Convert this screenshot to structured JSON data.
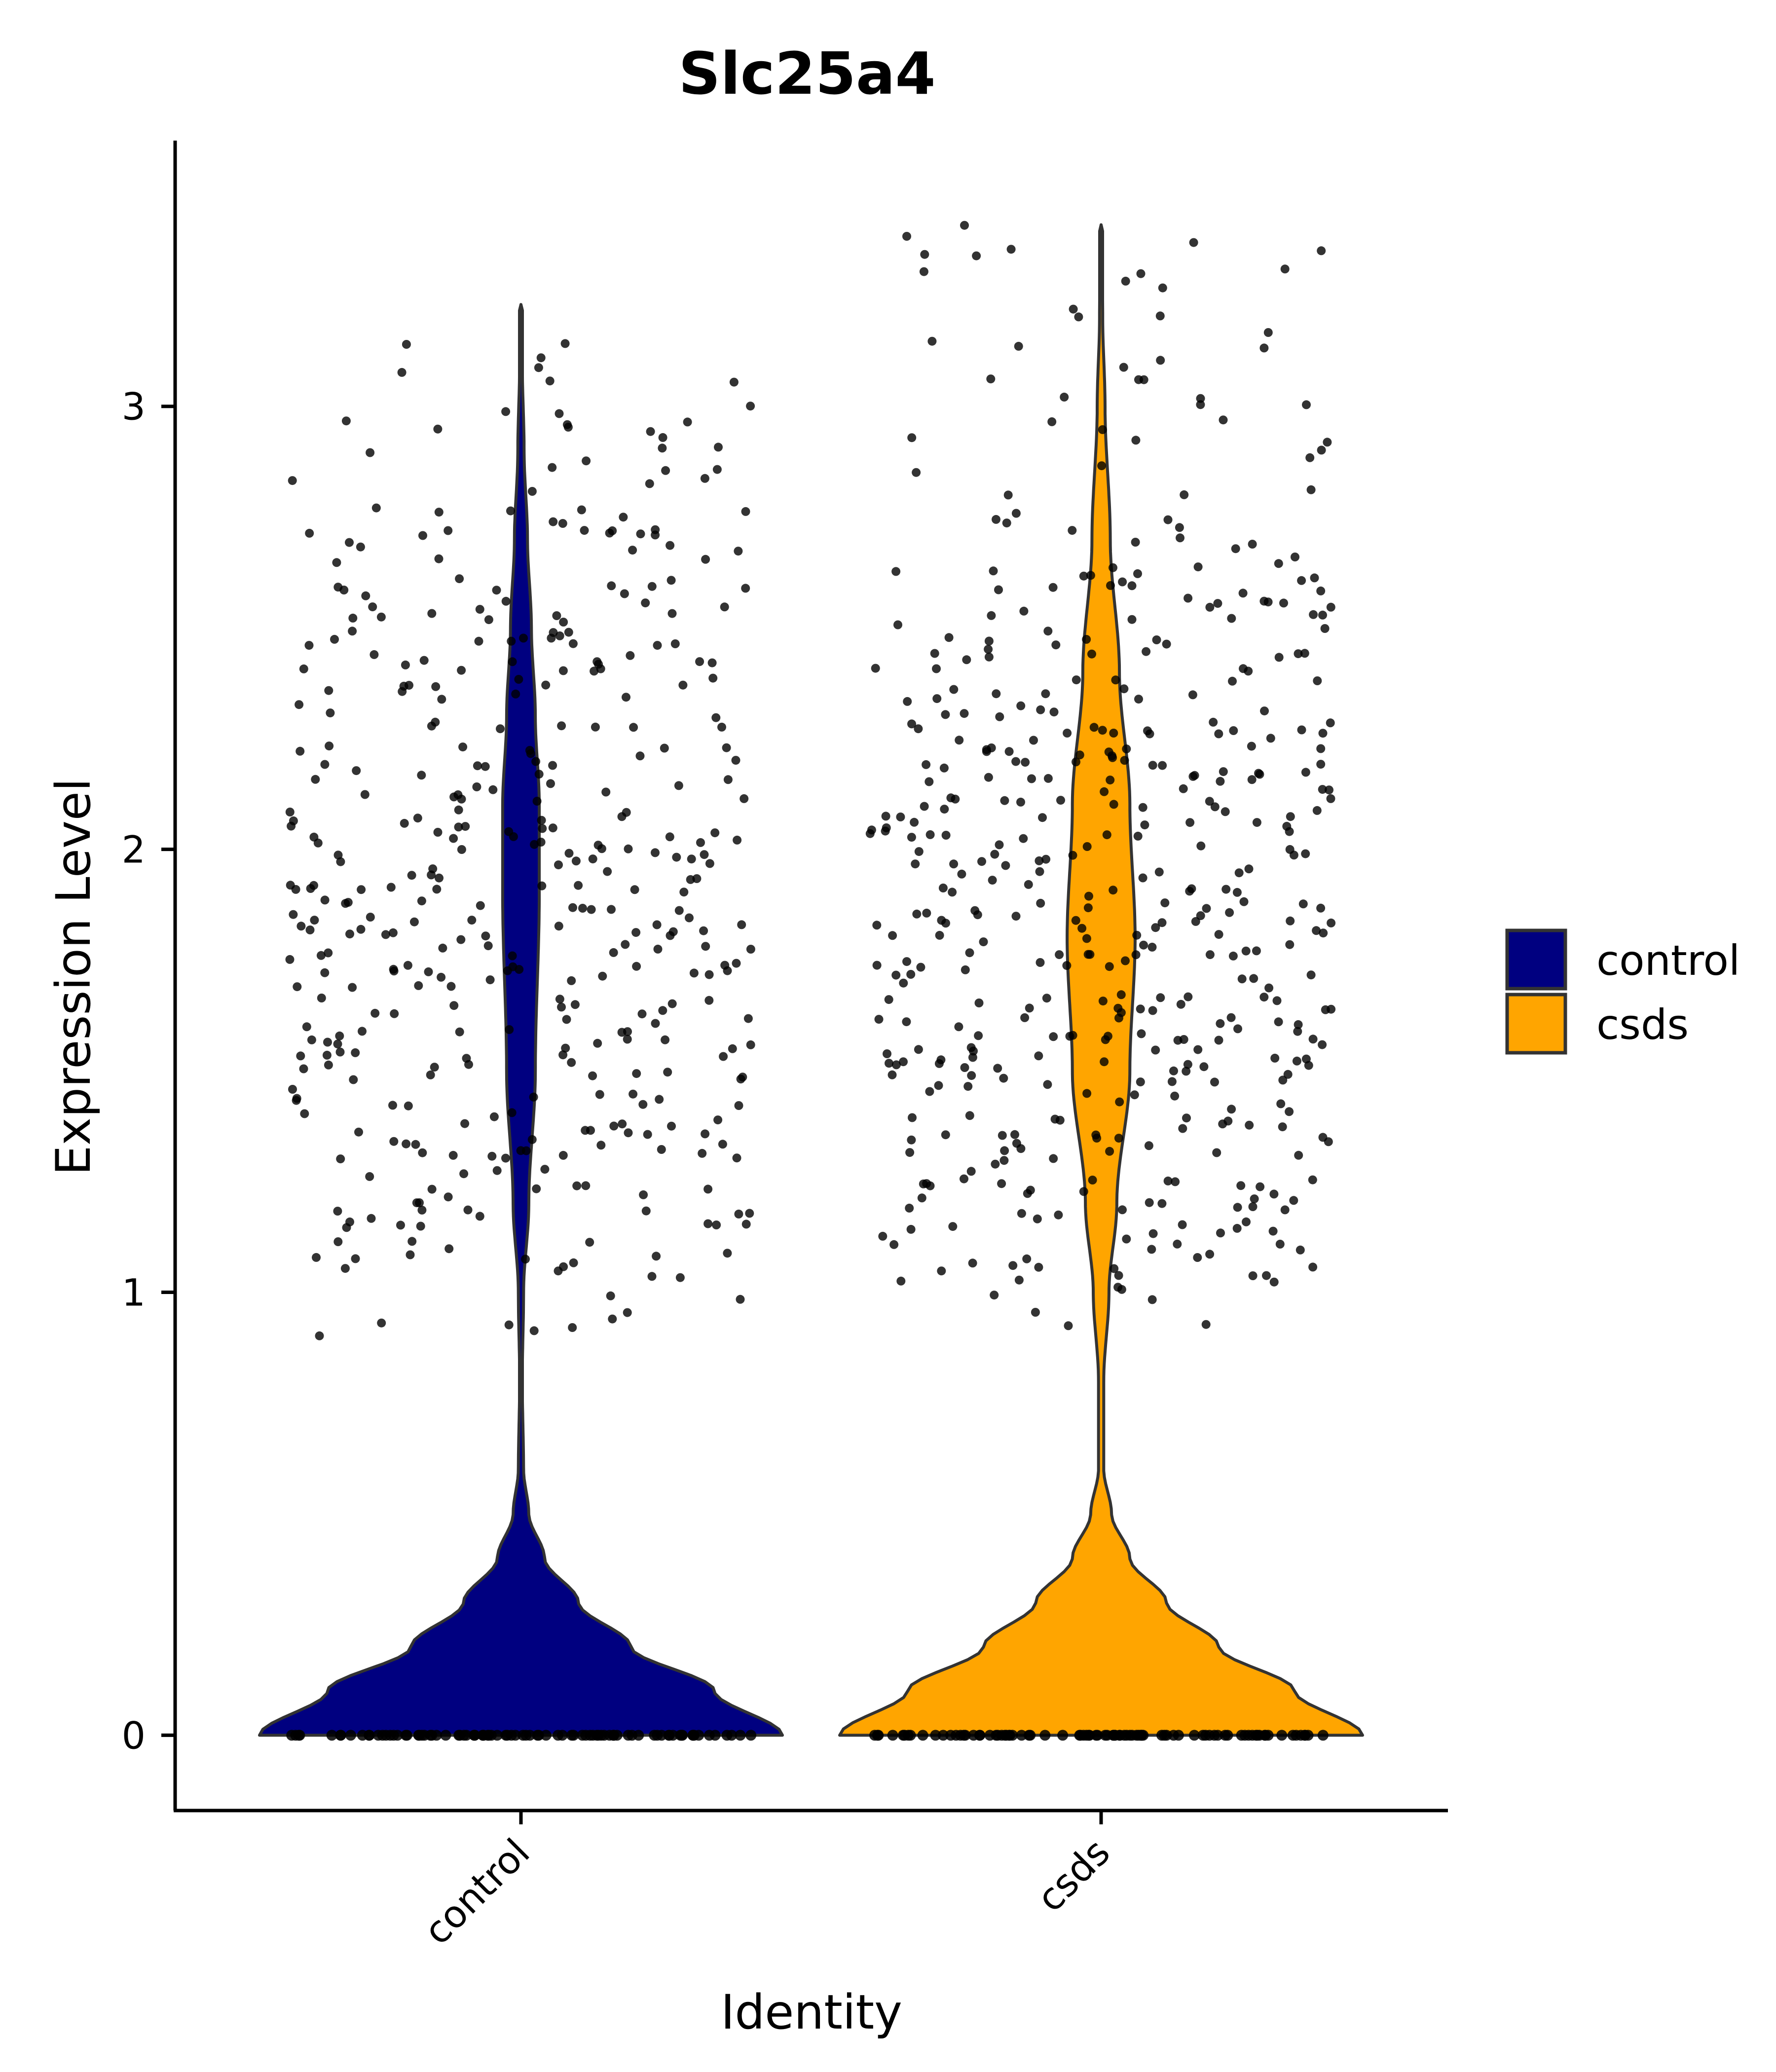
{
  "chart_data": {
    "type": "violin",
    "title": "Slc25a4",
    "xlabel": "Identity",
    "ylabel": "Expression Level",
    "categories": [
      "control",
      "csds"
    ],
    "ylim": [
      -0.17,
      3.6
    ],
    "yticks": [
      0,
      1,
      2,
      3
    ],
    "ytick_labels": [
      "0",
      "1",
      "2",
      "3"
    ],
    "grid": false,
    "legend": {
      "position": "right",
      "entries": [
        {
          "label": "control",
          "color": "#000080"
        },
        {
          "label": "csds",
          "color": "#FFA500"
        }
      ]
    },
    "series": [
      {
        "name": "control",
        "color": "#000080",
        "max_value": 3.23,
        "zero_fraction": 0.78,
        "nonzero_mode": 1.9,
        "approx_nonzero_range": [
          0.7,
          3.23
        ],
        "density_profile": [
          {
            "y": 0.0,
            "density": 1.0
          },
          {
            "y": 0.1,
            "density": 0.74
          },
          {
            "y": 0.2,
            "density": 0.42
          },
          {
            "y": 0.3,
            "density": 0.22
          },
          {
            "y": 0.4,
            "density": 0.09
          },
          {
            "y": 0.5,
            "density": 0.03
          },
          {
            "y": 0.6,
            "density": 0.01
          },
          {
            "y": 0.8,
            "density": 0.005
          },
          {
            "y": 1.0,
            "density": 0.01
          },
          {
            "y": 1.2,
            "density": 0.03
          },
          {
            "y": 1.5,
            "density": 0.055
          },
          {
            "y": 1.9,
            "density": 0.07
          },
          {
            "y": 2.1,
            "density": 0.07
          },
          {
            "y": 2.3,
            "density": 0.055
          },
          {
            "y": 2.5,
            "density": 0.04
          },
          {
            "y": 2.7,
            "density": 0.025
          },
          {
            "y": 2.9,
            "density": 0.012
          },
          {
            "y": 3.1,
            "density": 0.005
          },
          {
            "y": 3.23,
            "density": 0.002
          }
        ]
      },
      {
        "name": "csds",
        "color": "#FFA500",
        "max_value": 3.41,
        "zero_fraction": 0.72,
        "nonzero_mode": 1.8,
        "approx_nonzero_range": [
          0.72,
          3.41
        ],
        "density_profile": [
          {
            "y": 0.0,
            "density": 1.0
          },
          {
            "y": 0.1,
            "density": 0.74
          },
          {
            "y": 0.2,
            "density": 0.45
          },
          {
            "y": 0.3,
            "density": 0.25
          },
          {
            "y": 0.4,
            "density": 0.11
          },
          {
            "y": 0.5,
            "density": 0.04
          },
          {
            "y": 0.6,
            "density": 0.01
          },
          {
            "y": 0.8,
            "density": 0.01
          },
          {
            "y": 1.0,
            "density": 0.03
          },
          {
            "y": 1.2,
            "density": 0.06
          },
          {
            "y": 1.5,
            "density": 0.11
          },
          {
            "y": 1.8,
            "density": 0.13
          },
          {
            "y": 2.1,
            "density": 0.11
          },
          {
            "y": 2.4,
            "density": 0.07
          },
          {
            "y": 2.7,
            "density": 0.035
          },
          {
            "y": 3.0,
            "density": 0.015
          },
          {
            "y": 3.2,
            "density": 0.006
          },
          {
            "y": 3.41,
            "density": 0.002
          }
        ]
      }
    ]
  }
}
